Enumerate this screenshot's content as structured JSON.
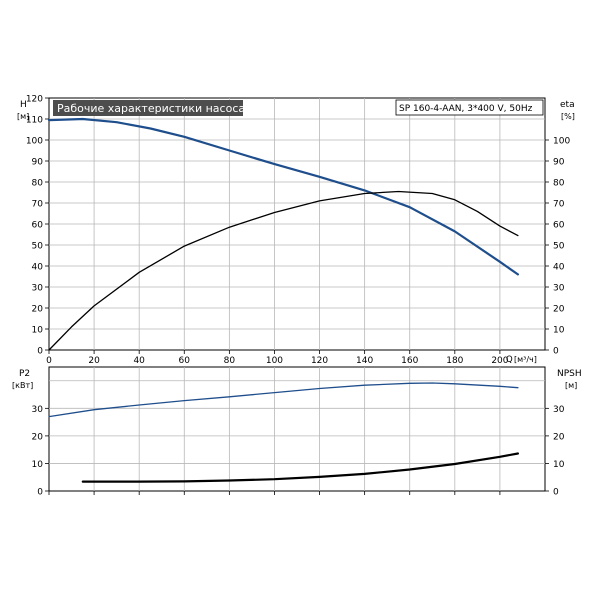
{
  "chart_data": [
    {
      "type": "line",
      "title": "Рабочие характеристики насоса",
      "subtitle": "SP 160-4-AAN, 3*400 V, 50Hz",
      "ylabel": "H",
      "yunit": "[м]",
      "y2label": "eta",
      "y2unit": "[%]",
      "xlabel": "Q",
      "xunit": "[м³/ч]",
      "xlim": [
        0,
        220
      ],
      "ylim": [
        0,
        120
      ],
      "y2lim": [
        0,
        120
      ],
      "grid": true,
      "xticks": [
        "0",
        "20",
        "40",
        "60",
        "80",
        "100",
        "120",
        "140",
        "160",
        "180",
        "200"
      ],
      "yticks": [
        "0",
        "10",
        "20",
        "30",
        "40",
        "50",
        "60",
        "70",
        "80",
        "90",
        "100",
        "110",
        "120"
      ],
      "y2ticks": [
        "0",
        "10",
        "20",
        "30",
        "40",
        "50",
        "60",
        "70",
        "80",
        "90",
        "100"
      ],
      "series": [
        {
          "id": "head",
          "color": "#1f4e8c",
          "points": [
            [
              0,
              109.5
            ],
            [
              15,
              110
            ],
            [
              30,
              108.5
            ],
            [
              45,
              105.5
            ],
            [
              60,
              101.5
            ],
            [
              80,
              95
            ],
            [
              100,
              88.5
            ],
            [
              120,
              82.5
            ],
            [
              140,
              76
            ],
            [
              160,
              68
            ],
            [
              180,
              56.5
            ],
            [
              200,
              42
            ],
            [
              208,
              36
            ]
          ]
        },
        {
          "id": "eta",
          "color": "#000000",
          "points": [
            [
              0,
              0
            ],
            [
              10,
              11
            ],
            [
              20,
              21
            ],
            [
              40,
              37
            ],
            [
              60,
              49.5
            ],
            [
              80,
              58.5
            ],
            [
              100,
              65.5
            ],
            [
              120,
              71
            ],
            [
              140,
              74.5
            ],
            [
              155,
              75.5
            ],
            [
              170,
              74.5
            ],
            [
              180,
              71.5
            ],
            [
              190,
              66
            ],
            [
              200,
              59
            ],
            [
              208,
              54.5
            ]
          ]
        }
      ]
    },
    {
      "type": "line",
      "ylabel": "P2",
      "yunit": "[кВт]",
      "y2label": "NPSH",
      "y2unit": "[м]",
      "xlim": [
        0,
        220
      ],
      "ylim": [
        0,
        45
      ],
      "y2lim": [
        0,
        45
      ],
      "grid": true,
      "yticks": [
        "0",
        "10",
        "20",
        "30"
      ],
      "y2ticks": [
        "0",
        "10",
        "20",
        "30"
      ],
      "series": [
        {
          "id": "p2",
          "color": "#1f4e8c",
          "points": [
            [
              0,
              27
            ],
            [
              20,
              29.5
            ],
            [
              40,
              31.2
            ],
            [
              60,
              32.8
            ],
            [
              80,
              34.2
            ],
            [
              100,
              35.7
            ],
            [
              120,
              37.2
            ],
            [
              140,
              38.4
            ],
            [
              160,
              39.1
            ],
            [
              170,
              39.2
            ],
            [
              180,
              38.9
            ],
            [
              200,
              38
            ],
            [
              208,
              37.5
            ]
          ]
        },
        {
          "id": "npsh",
          "color": "#000000",
          "points": [
            [
              15,
              3.4
            ],
            [
              40,
              3.4
            ],
            [
              60,
              3.5
            ],
            [
              80,
              3.8
            ],
            [
              100,
              4.3
            ],
            [
              120,
              5.1
            ],
            [
              140,
              6.2
            ],
            [
              160,
              7.8
            ],
            [
              180,
              9.8
            ],
            [
              200,
              12.4
            ],
            [
              208,
              13.6
            ]
          ]
        }
      ]
    }
  ]
}
